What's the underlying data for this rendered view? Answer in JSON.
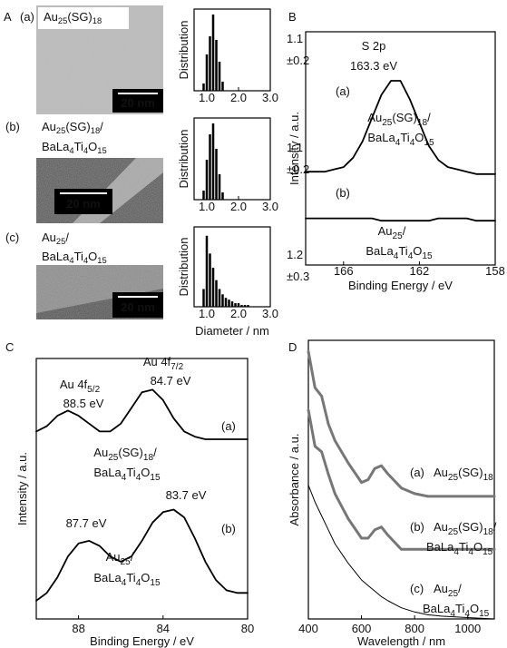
{
  "panel_labels": [
    "A",
    "B",
    "C",
    "D"
  ],
  "chart_data": [
    {
      "type": "histogram",
      "label": "(a)",
      "image_caption": [
        "Au25(SG)18"
      ],
      "scale_bar": "20 nm",
      "ylabel": "Distribution",
      "annotations": [
        {
          "text": "1.1",
          "color": "#e8322b"
        },
        {
          "text": "±0.2",
          "color": "#e8322b"
        }
      ],
      "bins": [
        0.85,
        0.95,
        1.05,
        1.15,
        1.25,
        1.35,
        1.45,
        1.55
      ],
      "counts": [
        4,
        20,
        30,
        42,
        28,
        16,
        5
      ],
      "color": "#000000",
      "xlim": [
        0.6,
        3.0
      ],
      "xticks": [
        {
          "value": 1,
          "label": "1.0"
        },
        {
          "value": 2,
          "label": "2.0"
        },
        {
          "value": 3,
          "label": "3.0"
        }
      ],
      "ylim": [
        0,
        45
      ]
    },
    {
      "type": "histogram",
      "label": "(b)",
      "image_caption": [
        "Au25(SG)18/",
        "BaLa4Ti4O15"
      ],
      "scale_bar": "20 nm",
      "ylabel": "Distribution",
      "annotations": [
        {
          "text": "1.1",
          "color": "#e8322b"
        },
        {
          "text": "±0.2",
          "color": "#e8322b"
        }
      ],
      "bins": [
        0.85,
        0.95,
        1.05,
        1.15,
        1.25,
        1.35,
        1.45,
        1.55
      ],
      "counts": [
        5,
        22,
        36,
        42,
        28,
        14,
        4
      ],
      "color": "#000000",
      "xlim": [
        0.6,
        3.0
      ],
      "xticks": [
        {
          "value": 1,
          "label": "1.0"
        },
        {
          "value": 2,
          "label": "2.0"
        },
        {
          "value": 3,
          "label": "3.0"
        }
      ],
      "ylim": [
        0,
        45
      ]
    },
    {
      "type": "histogram",
      "label": "(c)",
      "image_caption": [
        "Au25/",
        "BaLa4Ti4O15"
      ],
      "scale_bar": "20 nm",
      "ylabel": "Distribution",
      "xlabel": "Diameter / nm",
      "annotations": [
        {
          "text": "1.2",
          "color": "#e8322b"
        },
        {
          "text": "±0.3",
          "color": "#e8322b"
        }
      ],
      "bins": [
        0.85,
        0.95,
        1.05,
        1.15,
        1.25,
        1.35,
        1.45,
        1.55,
        1.65,
        1.75,
        1.85,
        1.95,
        2.05,
        2.15,
        2.25,
        2.35
      ],
      "counts": [
        10,
        40,
        30,
        22,
        15,
        10,
        7,
        5,
        4,
        3,
        2,
        2,
        1,
        1,
        1
      ],
      "color": "#000000",
      "xlim": [
        0.6,
        3.0
      ],
      "xticks": [
        {
          "value": 1,
          "label": "1.0"
        },
        {
          "value": 2,
          "label": "2.0"
        },
        {
          "value": 3,
          "label": "3.0"
        }
      ],
      "ylim": [
        0,
        45
      ]
    },
    {
      "type": "line",
      "xlabel": "Binding Energy / eV",
      "ylabel": "Intensity / a.u.",
      "xlim": [
        168,
        158
      ],
      "xticks": [
        166,
        162,
        158
      ],
      "ylim": [
        0,
        1
      ],
      "x": [
        168,
        167.5,
        167,
        166.5,
        166,
        165.5,
        165,
        164.5,
        164,
        163.5,
        163,
        162.5,
        162,
        161.5,
        161,
        160.5,
        160,
        159.5,
        159,
        158.5,
        158
      ],
      "series": [
        {
          "name": "(a)",
          "color": "#000000",
          "linewidth": 1.8,
          "values": [
            0.4,
            0.4,
            0.4,
            0.41,
            0.42,
            0.46,
            0.53,
            0.63,
            0.73,
            0.79,
            0.79,
            0.71,
            0.61,
            0.51,
            0.45,
            0.42,
            0.41,
            0.4,
            0.39,
            0.39,
            0.39
          ]
        },
        {
          "name": "(b)",
          "color": "#000000",
          "linewidth": 1.8,
          "values": [
            0.2,
            0.2,
            0.2,
            0.2,
            0.2,
            0.2,
            0.2,
            0.2,
            0.19,
            0.19,
            0.19,
            0.19,
            0.19,
            0.19,
            0.2,
            0.2,
            0.2,
            0.2,
            0.19,
            0.19,
            0.19
          ]
        }
      ],
      "annotations": [
        {
          "text": "S 2p"
        },
        {
          "text": "163.3 eV",
          "color": "#e8322b"
        },
        {
          "text": "Au25(SG)18/"
        },
        {
          "text": "BaLa4Ti4O15"
        },
        {
          "text": "Au25/"
        },
        {
          "text": "BaLa4Ti4O15"
        }
      ]
    },
    {
      "type": "line",
      "xlabel": "Binding Energy / eV",
      "ylabel": "Intensity / a.u.",
      "xlim": [
        90,
        80
      ],
      "xticks": [
        88,
        84,
        80
      ],
      "ylim": [
        0,
        1
      ],
      "x": [
        90,
        89.5,
        89,
        88.5,
        88,
        87.5,
        87,
        86.5,
        86,
        85.5,
        85,
        84.5,
        84,
        83.5,
        83,
        82.5,
        82,
        81.5,
        81,
        80.5,
        80
      ],
      "series": [
        {
          "name": "(a)",
          "color": "#000000",
          "linewidth": 1.8,
          "values": [
            0.72,
            0.74,
            0.78,
            0.8,
            0.78,
            0.75,
            0.72,
            0.72,
            0.75,
            0.81,
            0.87,
            0.88,
            0.84,
            0.77,
            0.72,
            0.7,
            0.69,
            0.69,
            0.69,
            0.69,
            0.69
          ]
        },
        {
          "name": "(b)",
          "color": "#000000",
          "linewidth": 1.8,
          "values": [
            0.07,
            0.1,
            0.16,
            0.24,
            0.29,
            0.3,
            0.28,
            0.24,
            0.22,
            0.24,
            0.3,
            0.37,
            0.41,
            0.42,
            0.39,
            0.31,
            0.22,
            0.15,
            0.11,
            0.1,
            0.1
          ]
        }
      ],
      "annotations": [
        {
          "text": "Au 4f5/2"
        },
        {
          "text": "88.5 eV",
          "color": "#e8322b"
        },
        {
          "text": "Au 4f7/2"
        },
        {
          "text": "84.7 eV",
          "color": "#e8322b"
        },
        {
          "text": "Au25(SG)18/"
        },
        {
          "text": "BaLa4Ti4O15"
        },
        {
          "text": "87.7 eV",
          "color": "#e8322b"
        },
        {
          "text": "83.7 eV",
          "color": "#e8322b"
        },
        {
          "text": "Au25/"
        },
        {
          "text": "BaLa4Ti4O15"
        }
      ]
    },
    {
      "type": "line",
      "xlabel": "Wavelength / nm",
      "ylabel": "Absorbance / a.u.",
      "xlim": [
        400,
        1100
      ],
      "xticks": [
        400,
        600,
        800,
        1000
      ],
      "ylim": [
        0,
        1
      ],
      "x": [
        400,
        425,
        450,
        475,
        500,
        550,
        600,
        625,
        650,
        675,
        700,
        750,
        800,
        850,
        900,
        1000,
        1100
      ],
      "series": [
        {
          "name": "(a)",
          "color": "#777777",
          "linewidth": 3,
          "values": [
            0.96,
            0.83,
            0.8,
            0.7,
            0.64,
            0.56,
            0.49,
            0.5,
            0.54,
            0.55,
            0.52,
            0.47,
            0.45,
            0.44,
            0.44,
            0.44,
            0.44
          ]
        },
        {
          "name": "(b)",
          "color": "#777777",
          "linewidth": 3,
          "values": [
            0.75,
            0.62,
            0.6,
            0.52,
            0.45,
            0.36,
            0.29,
            0.29,
            0.32,
            0.33,
            0.3,
            0.25,
            0.25,
            0.25,
            0.25,
            0.25,
            0.25
          ]
        },
        {
          "name": "(c)",
          "color": "#000000",
          "linewidth": 1,
          "values": [
            0.48,
            0.42,
            0.37,
            0.32,
            0.27,
            0.2,
            0.14,
            0.12,
            0.1,
            0.08,
            0.065,
            0.04,
            0.025,
            0.015,
            0.01,
            0.005,
            0
          ]
        }
      ],
      "annotations": [
        {
          "text": "Au25(SG)18"
        },
        {
          "text": "Au25(SG)18/"
        },
        {
          "text": "BaLa4Ti4O15"
        },
        {
          "text": "Au25/"
        },
        {
          "text": "BaLa4Ti4O15"
        }
      ]
    }
  ]
}
